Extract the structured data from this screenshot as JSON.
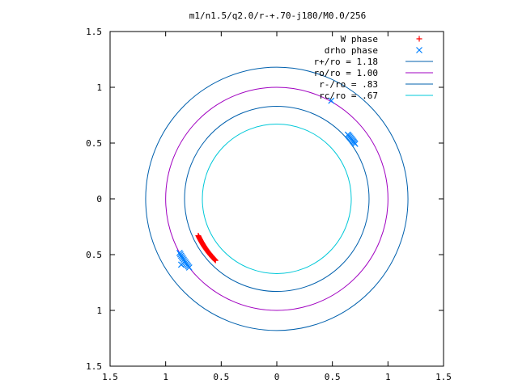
{
  "chart_data": {
    "type": "scatter",
    "title": "m1/n1.5/q2.0/r-+.70-j180/M0.0/256",
    "xlabel": "",
    "ylabel": "",
    "xlim": [
      -1.5,
      1.5
    ],
    "ylim": [
      -1.5,
      1.5
    ],
    "grid": false,
    "legend_position": "top-right",
    "x_ticks": [
      {
        "value": -1.5,
        "label": "1.5"
      },
      {
        "value": -1.0,
        "label": "1"
      },
      {
        "value": -0.5,
        "label": "0.5"
      },
      {
        "value": 0.0,
        "label": "0"
      },
      {
        "value": 0.5,
        "label": "0.5"
      },
      {
        "value": 1.0,
        "label": "1"
      },
      {
        "value": 1.5,
        "label": "1.5"
      }
    ],
    "y_ticks": [
      {
        "value": -1.5,
        "label": "1.5"
      },
      {
        "value": -1.0,
        "label": "1"
      },
      {
        "value": -0.5,
        "label": "0.5"
      },
      {
        "value": 0.0,
        "label": "0"
      },
      {
        "value": 0.5,
        "label": "0.5"
      },
      {
        "value": 1.0,
        "label": "1"
      },
      {
        "value": 1.5,
        "label": "1.5"
      }
    ],
    "series": [
      {
        "name": "W phase",
        "kind": "points",
        "marker": "plus",
        "color": "#ff0000",
        "arc": {
          "radius": 0.78,
          "start_deg": 205,
          "end_deg": 225,
          "count": 34
        }
      },
      {
        "name": "drho phase",
        "kind": "points",
        "marker": "cross",
        "color": "#0080ff",
        "arcs": [
          {
            "radius": 0.86,
            "start_deg": 35,
            "end_deg": 42,
            "count": 10
          },
          {
            "radius": 1.0,
            "start_deg": 209,
            "end_deg": 218,
            "count": 12
          }
        ],
        "points": [
          [
            0.49,
            0.88
          ],
          [
            -0.86,
            -0.59
          ]
        ]
      },
      {
        "name": "r+/ro = 1.18",
        "kind": "circle",
        "radius": 1.18,
        "color": "#0060ad"
      },
      {
        "name": "ro/ro = 1.00",
        "kind": "circle",
        "radius": 1.0,
        "color": "#a000c0"
      },
      {
        "name": "r-/ro = .83",
        "kind": "circle",
        "radius": 0.83,
        "color": "#0060ad"
      },
      {
        "name": "rc/ro = .67",
        "kind": "circle",
        "radius": 0.67,
        "color": "#00c8d8"
      }
    ]
  }
}
